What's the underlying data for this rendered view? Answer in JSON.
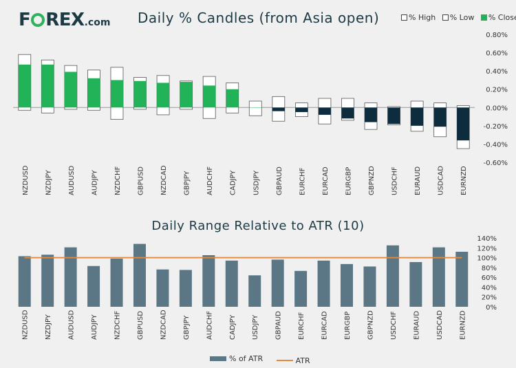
{
  "logo": {
    "brand_pre": "F",
    "brand_post": "REX",
    "suffix": ".com",
    "ring_color": "#2db35d"
  },
  "chart_data": [
    {
      "type": "candlestick",
      "title": "Daily % Candles (from Asia open)",
      "legend": [
        {
          "label": "% High",
          "swatch": "#ffffff"
        },
        {
          "label": "% Low",
          "swatch": "#ffffff"
        },
        {
          "label": "% Close",
          "swatch": "#22b257"
        }
      ],
      "categories": [
        "NZDUSD",
        "NZDJPY",
        "AUDUSD",
        "AUDJPY",
        "NZDCHF",
        "GBPUSD",
        "NZDCAD",
        "GBPJPY",
        "AUDCHF",
        "CADJPY",
        "USDJPY",
        "GBPAUD",
        "EURCHF",
        "EURCAD",
        "EURGBP",
        "GBPNZD",
        "USDCHF",
        "EURAUD",
        "USDCAD",
        "EURNZD"
      ],
      "high": [
        0.58,
        0.52,
        0.46,
        0.41,
        0.44,
        0.33,
        0.35,
        0.29,
        0.34,
        0.27,
        0.07,
        0.12,
        0.05,
        0.1,
        0.1,
        0.05,
        0.01,
        0.07,
        0.05,
        0.02
      ],
      "low": [
        -0.03,
        -0.06,
        -0.02,
        -0.03,
        -0.13,
        -0.02,
        -0.08,
        -0.02,
        -0.12,
        -0.06,
        -0.09,
        -0.15,
        -0.1,
        -0.18,
        -0.14,
        -0.24,
        -0.19,
        -0.26,
        -0.32,
        -0.45
      ],
      "close": [
        0.47,
        0.47,
        0.39,
        0.32,
        0.3,
        0.29,
        0.27,
        0.28,
        0.24,
        0.2,
        0.0,
        -0.04,
        -0.05,
        -0.08,
        -0.12,
        -0.16,
        -0.18,
        -0.2,
        -0.21,
        -0.36
      ],
      "ylim": [
        -0.6,
        0.8
      ],
      "yticks": [
        "0.80%",
        "0.60%",
        "0.40%",
        "0.20%",
        "0.00%",
        "-0.20%",
        "-0.40%",
        "-0.60%"
      ],
      "colors": {
        "up": "#22b257",
        "down": "#0d2d3f",
        "range_fill": "#ffffff",
        "range_stroke": "#555555"
      }
    },
    {
      "type": "bar",
      "title": "Daily Range Relative to ATR (10)",
      "categories": [
        "NZDUSD",
        "NZDJPY",
        "AUDUSD",
        "AUDJPY",
        "NZDCHF",
        "GBPUSD",
        "NZDCAD",
        "GBPJPY",
        "AUDCHF",
        "CADJPY",
        "USDJPY",
        "GBPAUD",
        "EURCHF",
        "EURCAD",
        "EURGBP",
        "GBPNZD",
        "USDCHF",
        "EURAUD",
        "USDCAD",
        "EURNZD"
      ],
      "series": [
        {
          "name": "% of ATR",
          "values": [
            103,
            106,
            121,
            83,
            98,
            128,
            76,
            75,
            105,
            94,
            64,
            96,
            73,
            94,
            87,
            82,
            125,
            91,
            121,
            112
          ],
          "color": "#5b7786"
        },
        {
          "name": "ATR",
          "values": [
            100,
            100,
            100,
            100,
            100,
            100,
            100,
            100,
            100,
            100,
            100,
            100,
            100,
            100,
            100,
            100,
            100,
            100,
            100,
            100
          ],
          "color": "#e3893b"
        }
      ],
      "ylim": [
        0,
        140
      ],
      "yticks": [
        "140%",
        "120%",
        "100%",
        "80%",
        "60%",
        "40%",
        "20%",
        "0%"
      ]
    }
  ]
}
